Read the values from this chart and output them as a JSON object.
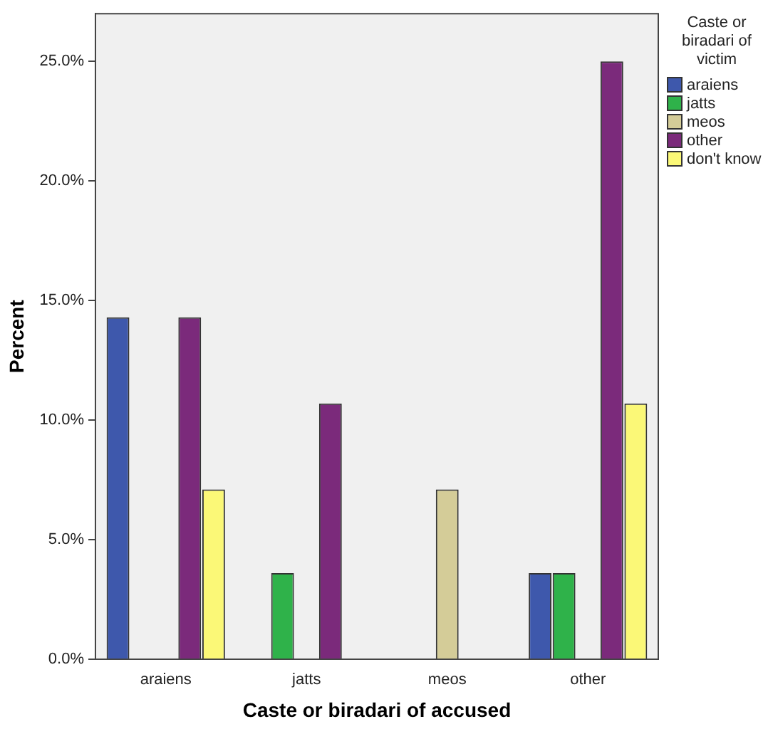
{
  "chart_data": {
    "type": "bar",
    "xlabel": "Caste or biradari of accused",
    "ylabel": "Percent",
    "legend_title": "Caste or biradari of victim",
    "legend": "right",
    "grid": false,
    "categories": [
      "araiens",
      "jatts",
      "meos",
      "other"
    ],
    "ylim": [
      0,
      27
    ],
    "yticks": [
      {
        "value": 0,
        "label": "0.0%"
      },
      {
        "value": 5,
        "label": "5.0%"
      },
      {
        "value": 10,
        "label": "10.0%"
      },
      {
        "value": 15,
        "label": "15.0%"
      },
      {
        "value": 20,
        "label": "20.0%"
      },
      {
        "value": 25,
        "label": "25.0%"
      }
    ],
    "series": [
      {
        "name": "araiens",
        "color": "#3e58ac",
        "values": [
          14.3,
          0,
          0,
          3.6
        ]
      },
      {
        "name": "jatts",
        "color": "#2fb24a",
        "values": [
          0,
          3.6,
          0,
          3.6
        ]
      },
      {
        "name": "meos",
        "color": "#d4cc98",
        "values": [
          0,
          0,
          7.1,
          0
        ]
      },
      {
        "name": "other",
        "color": "#7b2a7b",
        "values": [
          14.3,
          10.7,
          0,
          25
        ]
      },
      {
        "name": "don't know",
        "color": "#fbf877",
        "values": [
          7.1,
          0,
          0,
          10.7
        ]
      }
    ]
  }
}
